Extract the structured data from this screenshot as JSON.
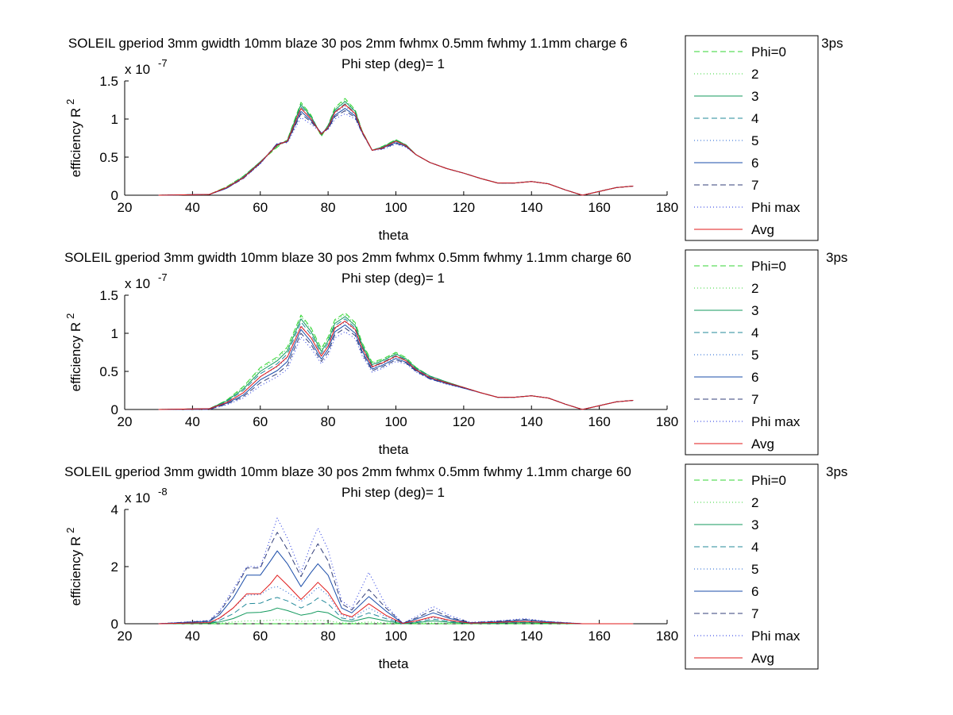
{
  "series_styles": [
    {
      "name": "Phi=0",
      "color": "#33d633",
      "dash": "7,4"
    },
    {
      "name": "2",
      "color": "#33d633",
      "dash": "1,3"
    },
    {
      "name": "3",
      "color": "#139a5e",
      "dash": ""
    },
    {
      "name": "4",
      "color": "#238a9a",
      "dash": "7,4"
    },
    {
      "name": "5",
      "color": "#1a5fd1",
      "dash": "1,3"
    },
    {
      "name": "6",
      "color": "#1a4ca8",
      "dash": ""
    },
    {
      "name": "7",
      "color": "#333f7a",
      "dash": "7,4"
    },
    {
      "name": "Phi max",
      "color": "#1a2ee0",
      "dash": "1,3"
    },
    {
      "name": "Avg",
      "color": "#e01a1a",
      "dash": ""
    }
  ],
  "chart_data": [
    {
      "type": "line",
      "title": "SOLEIL gperiod 3mm gwidth 10mm blaze 30 pos 2mm fwhmx 0.5mm fwhmy 1.1mm charge 6",
      "title_tail": "h 3ps",
      "subtitle": "Phi step (deg)= 1",
      "xlabel": "theta",
      "ylabel": "efficiency R",
      "ylabel_sup": "2",
      "xlim": [
        20,
        180
      ],
      "ylim": [
        0,
        1.5
      ],
      "xticks": [
        "20",
        "40",
        "60",
        "80",
        "100",
        "120",
        "140",
        "160",
        "180"
      ],
      "yticks": [
        "0",
        "0.5",
        "1",
        "1.5"
      ],
      "yexp_base": "x 10",
      "yexp_power": "-7",
      "legend": "right",
      "x": [
        30,
        45,
        50,
        55,
        60,
        65,
        68,
        72,
        75,
        78,
        80,
        82,
        85,
        88,
        90,
        93,
        96,
        100,
        103,
        106,
        110,
        115,
        120,
        125,
        130,
        135,
        140,
        145,
        150,
        155,
        160,
        165,
        170
      ],
      "series_values": [
        [
          0,
          0.01,
          0.11,
          0.25,
          0.44,
          0.63,
          0.73,
          1.22,
          1.05,
          0.77,
          0.92,
          1.15,
          1.27,
          1.12,
          0.85,
          0.59,
          0.64,
          0.73,
          0.66,
          0.53,
          0.43,
          0.35,
          0.29,
          0.22,
          0.16,
          0.16,
          0.18,
          0.15,
          0.07,
          0.0,
          0.05,
          0.1,
          0.12
        ],
        [
          0,
          0.01,
          0.11,
          0.25,
          0.44,
          0.64,
          0.73,
          1.21,
          1.04,
          0.78,
          0.92,
          1.14,
          1.25,
          1.11,
          0.85,
          0.59,
          0.64,
          0.73,
          0.66,
          0.53,
          0.43,
          0.35,
          0.29,
          0.22,
          0.16,
          0.16,
          0.18,
          0.15,
          0.07,
          0.0,
          0.05,
          0.1,
          0.12
        ],
        [
          0,
          0.01,
          0.1,
          0.24,
          0.44,
          0.65,
          0.72,
          1.19,
          1.03,
          0.79,
          0.91,
          1.12,
          1.23,
          1.1,
          0.84,
          0.59,
          0.63,
          0.72,
          0.66,
          0.53,
          0.43,
          0.35,
          0.29,
          0.22,
          0.16,
          0.16,
          0.18,
          0.15,
          0.07,
          0.0,
          0.05,
          0.1,
          0.12
        ],
        [
          0,
          0.01,
          0.1,
          0.24,
          0.43,
          0.66,
          0.71,
          1.16,
          1.02,
          0.8,
          0.9,
          1.1,
          1.2,
          1.08,
          0.84,
          0.59,
          0.63,
          0.71,
          0.65,
          0.53,
          0.43,
          0.35,
          0.29,
          0.22,
          0.16,
          0.16,
          0.18,
          0.15,
          0.07,
          0.0,
          0.05,
          0.1,
          0.12
        ],
        [
          0,
          0.01,
          0.1,
          0.23,
          0.43,
          0.67,
          0.71,
          1.13,
          1.0,
          0.81,
          0.89,
          1.08,
          1.17,
          1.06,
          0.83,
          0.59,
          0.62,
          0.7,
          0.65,
          0.53,
          0.43,
          0.35,
          0.29,
          0.22,
          0.16,
          0.16,
          0.18,
          0.15,
          0.07,
          0.0,
          0.05,
          0.1,
          0.12
        ],
        [
          0,
          0.01,
          0.09,
          0.23,
          0.42,
          0.67,
          0.7,
          1.1,
          0.98,
          0.81,
          0.88,
          1.05,
          1.14,
          1.04,
          0.83,
          0.59,
          0.62,
          0.69,
          0.64,
          0.53,
          0.43,
          0.35,
          0.29,
          0.22,
          0.16,
          0.16,
          0.18,
          0.15,
          0.07,
          0.0,
          0.05,
          0.1,
          0.12
        ],
        [
          0,
          0.01,
          0.09,
          0.22,
          0.42,
          0.68,
          0.7,
          1.07,
          0.96,
          0.82,
          0.87,
          1.03,
          1.11,
          1.02,
          0.82,
          0.59,
          0.61,
          0.68,
          0.64,
          0.53,
          0.43,
          0.35,
          0.29,
          0.22,
          0.16,
          0.16,
          0.18,
          0.15,
          0.07,
          0.0,
          0.05,
          0.1,
          0.12
        ],
        [
          0,
          0.01,
          0.09,
          0.22,
          0.41,
          0.68,
          0.69,
          1.02,
          0.93,
          0.82,
          0.86,
          1.0,
          1.07,
          1.0,
          0.82,
          0.59,
          0.6,
          0.67,
          0.63,
          0.53,
          0.43,
          0.35,
          0.29,
          0.22,
          0.16,
          0.16,
          0.18,
          0.15,
          0.07,
          0.0,
          0.05,
          0.1,
          0.12
        ],
        [
          0,
          0.01,
          0.1,
          0.23,
          0.43,
          0.66,
          0.71,
          1.14,
          1.0,
          0.8,
          0.89,
          1.09,
          1.19,
          1.07,
          0.84,
          0.59,
          0.62,
          0.71,
          0.65,
          0.53,
          0.43,
          0.35,
          0.29,
          0.22,
          0.16,
          0.16,
          0.18,
          0.15,
          0.07,
          0.0,
          0.05,
          0.1,
          0.12
        ]
      ]
    },
    {
      "type": "line",
      "title": "SOLEIL gperiod 3mm gwidth 10mm blaze 30 pos 2mm fwhmx 0.5mm fwhmy 1.1mm charge 60",
      "title_tail": "3ps",
      "subtitle": "Phi step (deg)= 1",
      "xlabel": "theta",
      "ylabel": "efficiency R",
      "ylabel_sup": "2",
      "xlim": [
        20,
        180
      ],
      "ylim": [
        0,
        1.5
      ],
      "xticks": [
        "20",
        "40",
        "60",
        "80",
        "100",
        "120",
        "140",
        "160",
        "180"
      ],
      "yticks": [
        "0",
        "0.5",
        "1",
        "1.5"
      ],
      "yexp_base": "x 10",
      "yexp_power": "-7",
      "legend": "right",
      "x": [
        30,
        45,
        50,
        55,
        60,
        65,
        68,
        72,
        75,
        78,
        80,
        82,
        85,
        88,
        90,
        93,
        96,
        100,
        103,
        106,
        110,
        115,
        120,
        125,
        130,
        135,
        140,
        145,
        150,
        155,
        160,
        165,
        170
      ],
      "series_values": [
        [
          0,
          0.01,
          0.12,
          0.3,
          0.55,
          0.69,
          0.82,
          1.24,
          1.07,
          0.8,
          0.95,
          1.18,
          1.27,
          1.14,
          0.88,
          0.62,
          0.66,
          0.75,
          0.68,
          0.55,
          0.44,
          0.36,
          0.29,
          0.22,
          0.16,
          0.16,
          0.18,
          0.15,
          0.07,
          0.0,
          0.05,
          0.1,
          0.12
        ],
        [
          0,
          0.01,
          0.12,
          0.29,
          0.53,
          0.67,
          0.8,
          1.22,
          1.05,
          0.78,
          0.93,
          1.16,
          1.25,
          1.12,
          0.87,
          0.61,
          0.65,
          0.74,
          0.67,
          0.55,
          0.44,
          0.36,
          0.29,
          0.22,
          0.16,
          0.16,
          0.18,
          0.15,
          0.07,
          0.0,
          0.05,
          0.1,
          0.12
        ],
        [
          0,
          0.01,
          0.11,
          0.27,
          0.5,
          0.64,
          0.77,
          1.19,
          1.02,
          0.76,
          0.9,
          1.13,
          1.22,
          1.1,
          0.85,
          0.59,
          0.64,
          0.73,
          0.66,
          0.54,
          0.44,
          0.36,
          0.29,
          0.22,
          0.16,
          0.16,
          0.18,
          0.15,
          0.07,
          0.0,
          0.05,
          0.1,
          0.12
        ],
        [
          0,
          0.01,
          0.1,
          0.25,
          0.47,
          0.6,
          0.73,
          1.15,
          0.98,
          0.73,
          0.87,
          1.1,
          1.19,
          1.07,
          0.83,
          0.57,
          0.62,
          0.71,
          0.65,
          0.53,
          0.43,
          0.35,
          0.29,
          0.22,
          0.16,
          0.16,
          0.18,
          0.15,
          0.07,
          0.0,
          0.05,
          0.1,
          0.12
        ],
        [
          0,
          0.01,
          0.09,
          0.22,
          0.43,
          0.56,
          0.68,
          1.1,
          0.94,
          0.7,
          0.83,
          1.06,
          1.15,
          1.04,
          0.8,
          0.55,
          0.6,
          0.69,
          0.64,
          0.52,
          0.42,
          0.35,
          0.29,
          0.22,
          0.16,
          0.16,
          0.18,
          0.15,
          0.07,
          0.0,
          0.05,
          0.1,
          0.12
        ],
        [
          0,
          0.01,
          0.08,
          0.19,
          0.39,
          0.51,
          0.63,
          1.05,
          0.89,
          0.66,
          0.79,
          1.02,
          1.11,
          1.0,
          0.77,
          0.53,
          0.58,
          0.67,
          0.62,
          0.51,
          0.41,
          0.34,
          0.28,
          0.22,
          0.16,
          0.16,
          0.18,
          0.15,
          0.07,
          0.0,
          0.05,
          0.1,
          0.12
        ],
        [
          0,
          0.0,
          0.07,
          0.17,
          0.35,
          0.47,
          0.58,
          1.0,
          0.85,
          0.63,
          0.75,
          0.98,
          1.07,
          0.97,
          0.74,
          0.51,
          0.56,
          0.65,
          0.61,
          0.5,
          0.4,
          0.34,
          0.28,
          0.22,
          0.16,
          0.16,
          0.18,
          0.15,
          0.07,
          0.0,
          0.05,
          0.1,
          0.12
        ],
        [
          0,
          0.0,
          0.06,
          0.15,
          0.31,
          0.43,
          0.53,
          0.95,
          0.8,
          0.6,
          0.71,
          0.94,
          1.02,
          0.93,
          0.71,
          0.49,
          0.54,
          0.63,
          0.6,
          0.49,
          0.4,
          0.33,
          0.28,
          0.22,
          0.16,
          0.16,
          0.18,
          0.15,
          0.07,
          0.0,
          0.05,
          0.1,
          0.12
        ],
        [
          0,
          0.01,
          0.09,
          0.22,
          0.43,
          0.57,
          0.69,
          1.09,
          0.94,
          0.7,
          0.83,
          1.07,
          1.16,
          1.05,
          0.81,
          0.56,
          0.61,
          0.7,
          0.64,
          0.52,
          0.42,
          0.35,
          0.29,
          0.22,
          0.16,
          0.16,
          0.18,
          0.15,
          0.07,
          0.0,
          0.05,
          0.1,
          0.12
        ]
      ]
    },
    {
      "type": "line",
      "title": "SOLEIL gperiod 3mm gwidth 10mm blaze 30 pos 2mm fwhmx 0.5mm fwhmy 1.1mm charge 60",
      "title_tail": "3ps",
      "subtitle": "Phi step (deg)= 1",
      "xlabel": "theta",
      "ylabel": "efficiency R",
      "ylabel_sup": "2",
      "xlim": [
        20,
        180
      ],
      "ylim": [
        0,
        4
      ],
      "xticks": [
        "20",
        "40",
        "60",
        "80",
        "100",
        "120",
        "140",
        "160",
        "180"
      ],
      "yticks": [
        "0",
        "2",
        "4"
      ],
      "yexp_base": "x 10",
      "yexp_power": "-8",
      "legend": "right",
      "x": [
        30,
        45,
        48,
        52,
        56,
        60,
        63,
        65,
        68,
        72,
        75,
        77,
        80,
        84,
        87,
        92,
        97,
        102,
        106,
        111,
        116,
        122,
        130,
        138,
        145,
        155,
        170
      ],
      "series_values": [
        [
          0,
          0,
          0,
          0,
          0,
          0,
          0,
          0,
          0,
          0,
          0,
          0,
          0,
          0,
          0,
          0,
          0,
          0,
          0,
          0,
          0,
          0,
          0,
          0,
          0,
          0,
          0
        ],
        [
          0,
          0.01,
          0.02,
          0.06,
          0.1,
          0.1,
          0.12,
          0.14,
          0.12,
          0.08,
          0.1,
          0.12,
          0.1,
          0.03,
          0.02,
          0.06,
          0.03,
          0,
          0.01,
          0.03,
          0.01,
          0,
          0.01,
          0.01,
          0.01,
          0,
          0
        ],
        [
          0,
          0.02,
          0.06,
          0.18,
          0.38,
          0.4,
          0.46,
          0.55,
          0.46,
          0.3,
          0.36,
          0.44,
          0.38,
          0.12,
          0.08,
          0.22,
          0.1,
          0,
          0.04,
          0.1,
          0.05,
          0.01,
          0.02,
          0.04,
          0.02,
          0,
          0
        ],
        [
          0,
          0.03,
          0.12,
          0.35,
          0.7,
          0.72,
          0.86,
          0.92,
          0.8,
          0.55,
          0.72,
          0.9,
          0.7,
          0.2,
          0.14,
          0.38,
          0.18,
          0,
          0.06,
          0.16,
          0.08,
          0.01,
          0.03,
          0.06,
          0.03,
          0,
          0
        ],
        [
          0,
          0.05,
          0.18,
          0.55,
          1.0,
          1.02,
          1.25,
          1.3,
          1.1,
          0.78,
          1.05,
          1.28,
          1.0,
          0.3,
          0.2,
          0.55,
          0.25,
          0,
          0.09,
          0.22,
          0.11,
          0.02,
          0.04,
          0.08,
          0.04,
          0,
          0
        ],
        [
          0,
          0.08,
          0.32,
          0.9,
          1.7,
          1.7,
          2.2,
          2.55,
          2.1,
          1.3,
          1.8,
          2.1,
          1.7,
          0.55,
          0.38,
          0.95,
          0.45,
          0.02,
          0.16,
          0.38,
          0.18,
          0.03,
          0.07,
          0.13,
          0.06,
          0,
          0
        ],
        [
          0,
          0.1,
          0.4,
          1.1,
          1.95,
          1.95,
          2.75,
          3.2,
          2.6,
          1.65,
          2.4,
          2.8,
          2.2,
          0.7,
          0.48,
          1.2,
          0.56,
          0.02,
          0.2,
          0.48,
          0.22,
          0.04,
          0.09,
          0.15,
          0.07,
          0,
          0
        ],
        [
          0,
          0.12,
          0.45,
          1.2,
          2.0,
          2.0,
          3.0,
          3.7,
          3.0,
          1.8,
          2.8,
          3.35,
          2.6,
          0.8,
          0.55,
          1.8,
          0.65,
          0.02,
          0.25,
          0.6,
          0.28,
          0.05,
          0.1,
          0.18,
          0.08,
          0,
          0
        ],
        [
          0,
          0.04,
          0.2,
          0.55,
          1.05,
          1.05,
          1.4,
          1.7,
          1.35,
          0.85,
          1.2,
          1.45,
          1.1,
          0.35,
          0.24,
          0.7,
          0.3,
          0.01,
          0.1,
          0.25,
          0.12,
          0.02,
          0.05,
          0.08,
          0.04,
          0,
          0
        ]
      ]
    }
  ]
}
